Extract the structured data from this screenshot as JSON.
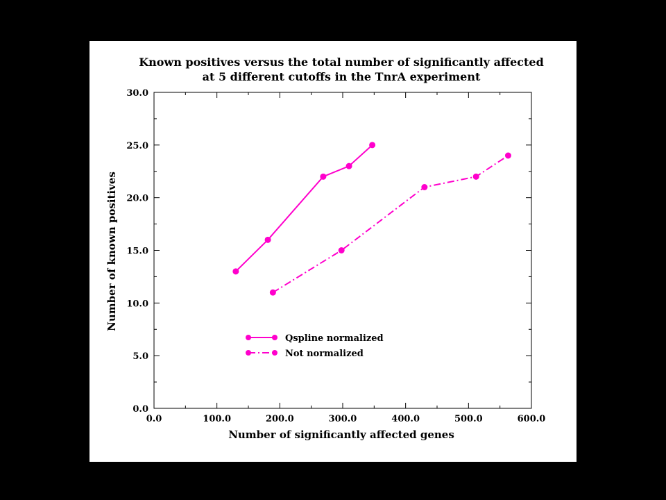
{
  "chart_data": {
    "type": "line",
    "title": "Known positives versus the total number of significantly affected",
    "subtitle": "at 5 different cutoffs in the TnrA experiment",
    "xlabel": "Number of significantly affected genes",
    "ylabel": "Number of known positives",
    "xlim": [
      0,
      600
    ],
    "ylim": [
      0,
      30
    ],
    "x_ticks": [
      "0.0",
      "100.0",
      "200.0",
      "300.0",
      "400.0",
      "500.0",
      "600.0"
    ],
    "y_ticks": [
      "0.0",
      "5.0",
      "10.0",
      "15.0",
      "20.0",
      "25.0",
      "30.0"
    ],
    "grid": false,
    "legend_position": "center-left",
    "series": [
      {
        "name": "Qspline normalized",
        "style": "solid",
        "color": "#ff00cc",
        "x": [
          130,
          181,
          269,
          310,
          347
        ],
        "y": [
          13,
          16,
          22,
          23,
          25
        ]
      },
      {
        "name": "Not normalized",
        "style": "dash-dot",
        "color": "#ff00cc",
        "x": [
          189,
          298,
          430,
          512,
          563
        ],
        "y": [
          11,
          15,
          21,
          22,
          24
        ]
      }
    ]
  }
}
